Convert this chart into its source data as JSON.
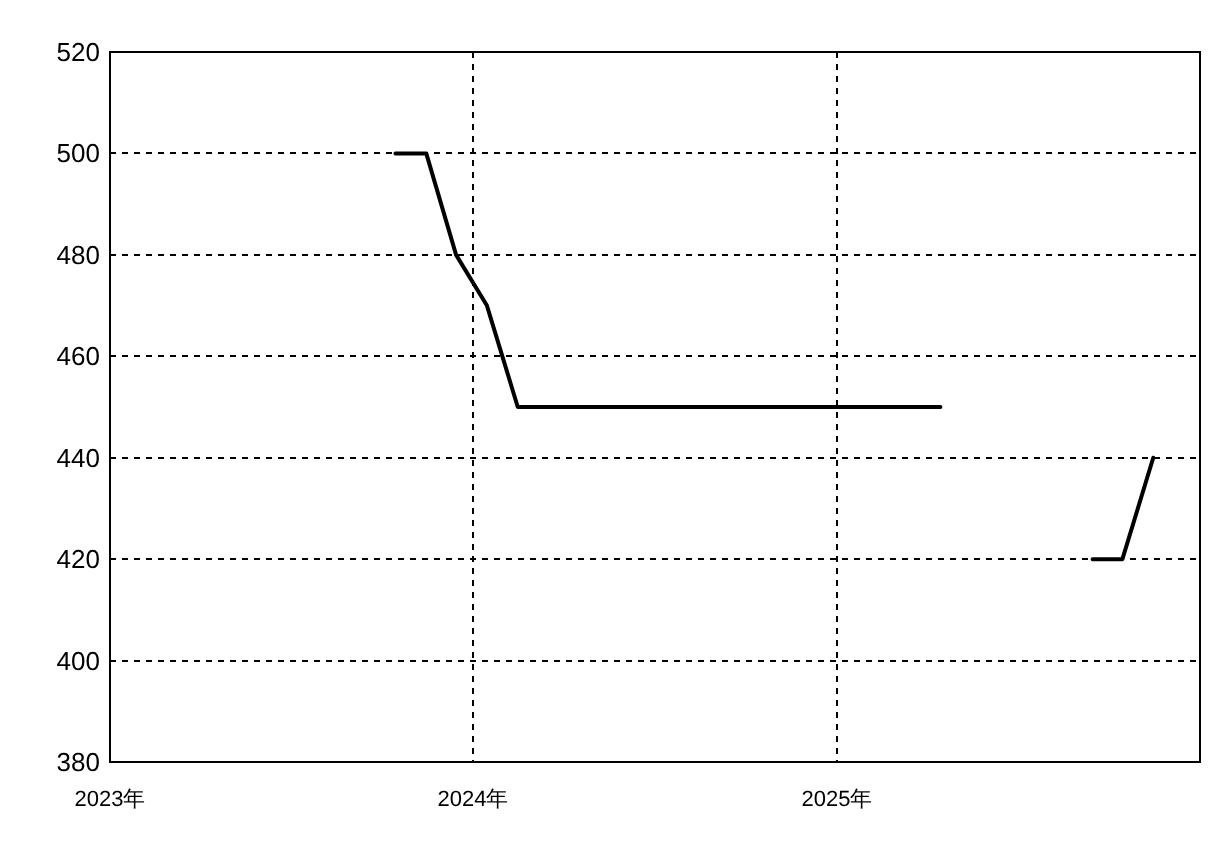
{
  "chart_data": {
    "type": "line",
    "series": [
      {
        "color": "#000000",
        "x": [
          "2023-10-15",
          "2023-11-15",
          "2023-12-15",
          "2024-01-15",
          "2024-02-15",
          "2024-03-15",
          "2024-04-15",
          "2024-05-15",
          "2024-06-15",
          "2024-07-15",
          "2024-08-15",
          "2024-09-15",
          "2024-10-15",
          "2024-11-15",
          "2024-12-15",
          "2025-01-15",
          "2025-02-15",
          "2025-03-15",
          "2025-04-15"
        ],
        "values": [
          500,
          500,
          480,
          470,
          450,
          450,
          450,
          450,
          450,
          450,
          450,
          450,
          450,
          450,
          450,
          450,
          450,
          450,
          450
        ]
      },
      {
        "color": "#000000",
        "x": [
          "2025-09-15",
          "2025-10-15",
          "2025-11-15"
        ],
        "values": [
          420,
          420,
          440
        ]
      }
    ],
    "xlim": [
      "2023-01-01",
      "2026-01-01"
    ],
    "xticks": [
      {
        "value": "2023-01-01",
        "label": "2023年"
      },
      {
        "value": "2024-01-01",
        "label": "2024年"
      },
      {
        "value": "2025-01-01",
        "label": "2025年"
      }
    ],
    "ylim": [
      380,
      520
    ],
    "yticks": [
      380,
      400,
      420,
      440,
      460,
      480,
      500,
      520
    ],
    "grid": true,
    "line_style": "solid"
  }
}
